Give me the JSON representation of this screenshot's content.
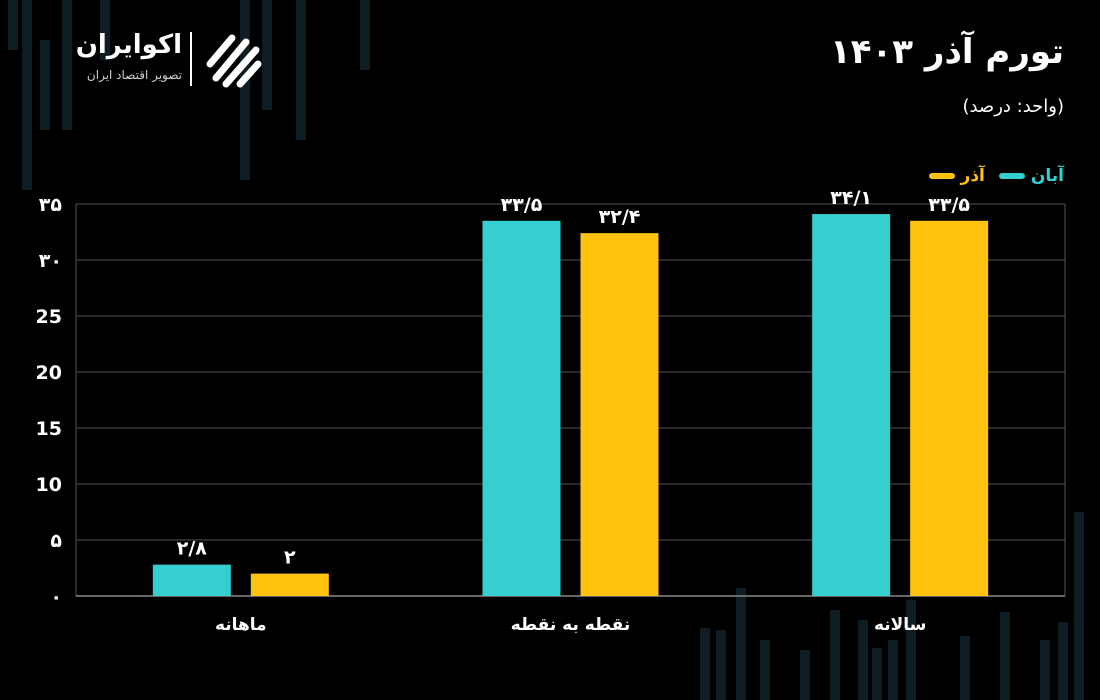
{
  "header": {
    "title": "تورم آذر ۱۴۰۳",
    "subtitle": "(واحد: درصد)"
  },
  "logo": {
    "name": "اکوایران",
    "tagline": "تصویر اقتصاد ایران"
  },
  "colors": {
    "series_1": "#35CFCF",
    "series_2": "#FFC20E",
    "background": "#000000",
    "grid": "#555555"
  },
  "chart_data": {
    "type": "bar",
    "title": "تورم آذر ۱۴۰۳",
    "subtitle": "(واحد: درصد)",
    "categories": [
      "ماهانه",
      "نقطه به نقطه",
      "سالانه"
    ],
    "series": [
      {
        "name": "آبان",
        "values": [
          2.8,
          33.5,
          34.1
        ],
        "value_labels": [
          "۲/۸",
          "۳۳/۵",
          "۳۴/۱"
        ]
      },
      {
        "name": "آذر",
        "values": [
          2,
          32.4,
          33.5
        ],
        "value_labels": [
          "۲",
          "۳۲/۴",
          "۳۳/۵"
        ]
      }
    ],
    "ylim": [
      0,
      35
    ],
    "yticks": [
      0,
      5,
      10,
      15,
      20,
      25,
      30,
      35
    ],
    "ytick_labels": [
      "۰",
      "۵",
      "10",
      "15",
      "20",
      "25",
      "۳۰",
      "۳۵"
    ],
    "grid": true,
    "legend_position": "top-right"
  }
}
